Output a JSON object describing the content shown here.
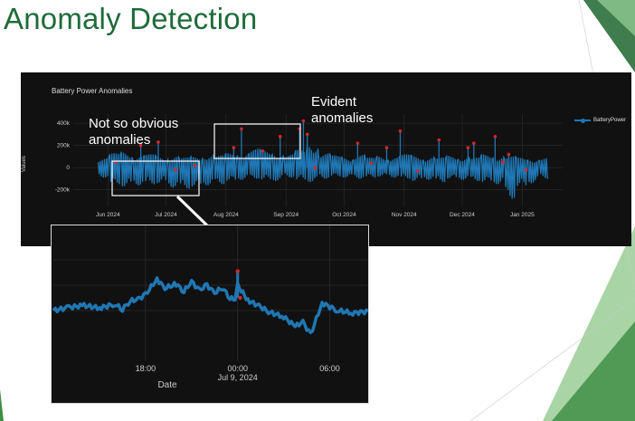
{
  "slide": {
    "title": "Anomaly Detection"
  },
  "annotations": {
    "evident_line1": "Evident",
    "evident_line2": "anomalies",
    "obvious_line1": "Not so obvious",
    "obvious_line2": "anomalies"
  },
  "colors": {
    "title": "#1e6b3a",
    "series": "#1f77b4",
    "anomaly": "#d62728",
    "panel": "#111111",
    "accent_green": "#4f9a55"
  },
  "chart_data": [
    {
      "type": "line",
      "title": "Battery Power Anomalies",
      "ylabel": "Values",
      "xlabel": "",
      "legend": {
        "entries": [
          "BatteryPower"
        ],
        "placement": "right"
      },
      "x_range": [
        "2024-05-16",
        "2025-01-20"
      ],
      "ylim": [
        -300000,
        450000
      ],
      "y_ticks": [
        {
          "value": 400000,
          "label": "400k"
        },
        {
          "value": 200000,
          "label": "200k"
        },
        {
          "value": 0,
          "label": "0"
        },
        {
          "value": -200000,
          "label": "-200k"
        }
      ],
      "x_ticks": [
        {
          "date": "2024-06-01",
          "label": "Jun 2024"
        },
        {
          "date": "2024-07-01",
          "label": "Jul 2024"
        },
        {
          "date": "2024-08-01",
          "label": "Aug 2024"
        },
        {
          "date": "2024-09-01",
          "label": "Sep 2024"
        },
        {
          "date": "2024-10-01",
          "label": "Oct 2024"
        },
        {
          "date": "2024-11-01",
          "label": "Nov 2024"
        },
        {
          "date": "2024-12-01",
          "label": "Dec 2024"
        },
        {
          "date": "2025-01-01",
          "label": "Jan 2025"
        }
      ],
      "grid": true,
      "series": [
        {
          "name": "BatteryPower",
          "x": [
            "2024-05-27",
            "2024-06-02",
            "2024-06-08",
            "2024-06-14",
            "2024-06-20",
            "2024-06-26",
            "2024-07-02",
            "2024-07-08",
            "2024-07-14",
            "2024-07-20",
            "2024-07-26",
            "2024-08-01",
            "2024-08-07",
            "2024-08-13",
            "2024-08-19",
            "2024-08-25",
            "2024-08-31",
            "2024-09-06",
            "2024-09-12",
            "2024-09-18",
            "2024-09-24",
            "2024-09-30",
            "2024-10-06",
            "2024-10-12",
            "2024-10-18",
            "2024-10-24",
            "2024-10-30",
            "2024-11-05",
            "2024-11-11",
            "2024-11-17",
            "2024-11-23",
            "2024-11-29",
            "2024-12-05",
            "2024-12-11",
            "2024-12-17",
            "2024-12-23",
            "2024-12-29",
            "2025-01-04",
            "2025-01-10"
          ],
          "y_high": [
            90000,
            130000,
            150000,
            110000,
            120000,
            100000,
            110000,
            90000,
            100000,
            120000,
            110000,
            130000,
            140000,
            170000,
            150000,
            140000,
            120000,
            160000,
            230000,
            130000,
            110000,
            100000,
            120000,
            90000,
            110000,
            100000,
            120000,
            110000,
            100000,
            90000,
            110000,
            100000,
            90000,
            120000,
            110000,
            100000,
            90000,
            80000,
            90000
          ],
          "y_low": [
            -90000,
            -150000,
            -170000,
            -160000,
            -150000,
            -140000,
            -180000,
            -190000,
            -170000,
            -160000,
            -150000,
            -120000,
            -110000,
            -100000,
            -110000,
            -120000,
            -90000,
            -110000,
            -130000,
            -100000,
            -80000,
            -90000,
            -100000,
            -90000,
            -80000,
            -90000,
            -100000,
            -120000,
            -110000,
            -130000,
            -100000,
            -110000,
            -120000,
            -130000,
            -150000,
            -280000,
            -170000,
            -140000,
            -100000
          ]
        }
      ],
      "anomalies": {
        "x": [
          "2024-06-05",
          "2024-06-18",
          "2024-06-27",
          "2024-07-06",
          "2024-07-16",
          "2024-08-05",
          "2024-08-09",
          "2024-08-20",
          "2024-08-29",
          "2024-09-08",
          "2024-09-10",
          "2024-09-12",
          "2024-09-16",
          "2024-10-08",
          "2024-10-15",
          "2024-10-23",
          "2024-10-30",
          "2024-11-08",
          "2024-11-19",
          "2024-12-04",
          "2024-12-07",
          "2024-12-18",
          "2024-12-22",
          "2024-12-25",
          "2025-01-03"
        ],
        "y": [
          50000,
          200000,
          230000,
          -20000,
          20000,
          180000,
          350000,
          150000,
          280000,
          350000,
          420000,
          300000,
          0,
          220000,
          40000,
          180000,
          330000,
          -30000,
          250000,
          180000,
          220000,
          280000,
          50000,
          120000,
          -20000
        ]
      }
    },
    {
      "type": "line",
      "title": "",
      "xlabel": "Date",
      "ylabel": "",
      "x_range": [
        "2024-07-08T12:00",
        "2024-07-09T08:30"
      ],
      "x_ticks": [
        {
          "time": "2024-07-08T18:00",
          "label": "18:00"
        },
        {
          "time": "2024-07-09T00:00",
          "label": "00:00",
          "sublabel": "Jul 9, 2024"
        },
        {
          "time": "2024-07-09T06:00",
          "label": "06:00"
        }
      ],
      "grid": true,
      "series": [
        {
          "name": "BatteryPower",
          "x": [
            "2024-07-08T12:00",
            "2024-07-08T13:00",
            "2024-07-08T14:00",
            "2024-07-08T15:00",
            "2024-07-08T16:00",
            "2024-07-08T16:30",
            "2024-07-08T17:00",
            "2024-07-08T17:30",
            "2024-07-08T18:00",
            "2024-07-08T18:45",
            "2024-07-08T19:15",
            "2024-07-08T20:00",
            "2024-07-08T20:30",
            "2024-07-08T21:00",
            "2024-07-08T21:30",
            "2024-07-08T22:00",
            "2024-07-08T22:30",
            "2024-07-08T23:00",
            "2024-07-08T23:30",
            "2024-07-08T23:50",
            "2024-07-09T00:00",
            "2024-07-09T00:40",
            "2024-07-09T01:30",
            "2024-07-09T02:00",
            "2024-07-09T03:00",
            "2024-07-09T03:45",
            "2024-07-09T04:15",
            "2024-07-09T04:45",
            "2024-07-09T05:30",
            "2024-07-09T06:30",
            "2024-07-09T07:30",
            "2024-07-09T08:30"
          ],
          "y": [
            20000,
            25000,
            28000,
            24000,
            30000,
            22000,
            35000,
            38000,
            45000,
            70000,
            55000,
            62000,
            50000,
            66000,
            52000,
            60000,
            48000,
            56000,
            40000,
            36000,
            60000,
            36000,
            26000,
            18000,
            10000,
            -5000,
            2000,
            -18000,
            32000,
            20000,
            16000,
            19000
          ]
        }
      ],
      "anomalies": {
        "x": [
          "2024-07-09T00:00",
          "2024-07-09T00:10"
        ],
        "y": [
          82000,
          40000
        ]
      }
    }
  ]
}
